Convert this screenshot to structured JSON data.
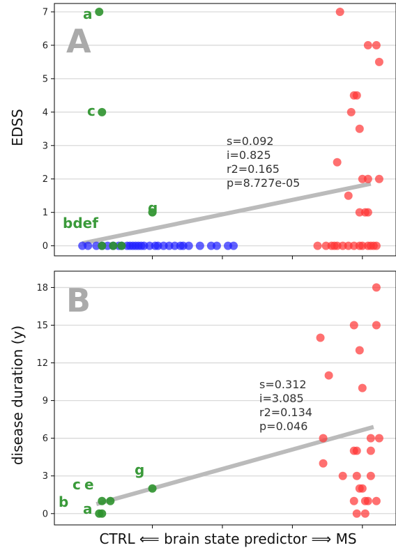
{
  "colors": {
    "ctrl": "#1f1fff",
    "ms": "#ff3333",
    "outlier": "#2e922e",
    "fit": "#bbbbbb",
    "grid": "#d9d9d9",
    "panel_letter": "#aaaaaa"
  },
  "xlabel": "CTRL ⟸ brain state predictor ⟹ MS",
  "chart_data": [
    {
      "type": "scatter",
      "panel": "A",
      "ylabel": "EDSS",
      "xlim": [
        -0.1,
        1.12
      ],
      "ylim": [
        -0.3,
        7.25
      ],
      "yticks": [
        0,
        1,
        2,
        3,
        4,
        5,
        6,
        7
      ],
      "xticks": [
        0.25,
        0.5,
        0.75,
        1.0
      ],
      "grid": "horizontal",
      "fit": {
        "slope": 1.73,
        "intercept": 0.075,
        "x_range": [
          0.0,
          1.03
        ]
      },
      "stats": [
        "s=0.092",
        "i=0.825",
        "r2=0.165",
        "p=8.727e-05"
      ],
      "series": [
        {
          "group": "ctrl",
          "points": [
            [
              0.0,
              0
            ],
            [
              0.02,
              0
            ],
            [
              0.05,
              0
            ],
            [
              0.07,
              0
            ],
            [
              0.09,
              0
            ],
            [
              0.11,
              0
            ],
            [
              0.13,
              0
            ],
            [
              0.14,
              0
            ],
            [
              0.16,
              0
            ],
            [
              0.17,
              0
            ],
            [
              0.18,
              0
            ],
            [
              0.19,
              0
            ],
            [
              0.2,
              0
            ],
            [
              0.21,
              0
            ],
            [
              0.22,
              0
            ],
            [
              0.24,
              0
            ],
            [
              0.26,
              0
            ],
            [
              0.27,
              0
            ],
            [
              0.29,
              0
            ],
            [
              0.31,
              0
            ],
            [
              0.33,
              0
            ],
            [
              0.35,
              0
            ],
            [
              0.36,
              0
            ],
            [
              0.38,
              0
            ],
            [
              0.42,
              0
            ],
            [
              0.46,
              0
            ],
            [
              0.48,
              0
            ],
            [
              0.52,
              0
            ],
            [
              0.54,
              0
            ]
          ]
        },
        {
          "group": "ms",
          "points": [
            [
              0.92,
              7
            ],
            [
              1.02,
              6
            ],
            [
              1.05,
              6
            ],
            [
              1.06,
              5.5
            ],
            [
              0.97,
              4.5
            ],
            [
              0.98,
              4.5
            ],
            [
              0.96,
              4
            ],
            [
              0.99,
              3.5
            ],
            [
              0.91,
              2.5
            ],
            [
              1.0,
              2
            ],
            [
              1.02,
              2
            ],
            [
              1.06,
              2
            ],
            [
              0.95,
              1.5
            ],
            [
              0.99,
              1
            ],
            [
              1.01,
              1
            ],
            [
              1.02,
              1
            ],
            [
              0.84,
              0
            ],
            [
              0.87,
              0
            ],
            [
              0.89,
              0
            ],
            [
              0.9,
              0
            ],
            [
              0.91,
              0
            ],
            [
              0.93,
              0
            ],
            [
              0.95,
              0
            ],
            [
              0.97,
              0
            ],
            [
              0.99,
              0
            ],
            [
              1.0,
              0
            ],
            [
              1.02,
              0
            ],
            [
              1.03,
              0
            ],
            [
              1.04,
              0
            ],
            [
              1.05,
              0
            ]
          ]
        },
        {
          "group": "outlier",
          "points": [
            {
              "x": 0.06,
              "y": 7,
              "label": "a"
            },
            {
              "x": 0.07,
              "y": 4,
              "label": "c"
            },
            {
              "x": 0.25,
              "y": 1,
              "label": "g"
            },
            {
              "x": 0.07,
              "y": 0,
              "label": ""
            },
            {
              "x": 0.11,
              "y": 0,
              "label": ""
            },
            {
              "x": 0.14,
              "y": 0,
              "label": ""
            }
          ]
        }
      ],
      "label_texts": {
        "a": "a",
        "c": "c",
        "g": "g",
        "bdef": "bdef"
      }
    },
    {
      "type": "scatter",
      "panel": "B",
      "ylabel": "disease duration (y)",
      "xlim": [
        -0.1,
        1.12
      ],
      "ylim": [
        -0.9,
        19.3
      ],
      "yticks": [
        0,
        3,
        6,
        9,
        12,
        15,
        18
      ],
      "xticks": [
        0.25,
        0.5,
        0.75,
        1.0
      ],
      "grid": "horizontal",
      "fit": {
        "slope": 6.2,
        "intercept": 0.45,
        "x_range": [
          0.05,
          1.04
        ]
      },
      "stats": [
        "s=0.312",
        "i=3.085",
        "r2=0.134",
        "p=0.046"
      ],
      "series": [
        {
          "group": "ms",
          "points": [
            [
              1.05,
              18
            ],
            [
              0.85,
              14
            ],
            [
              0.97,
              15
            ],
            [
              1.05,
              15
            ],
            [
              0.99,
              13
            ],
            [
              0.88,
              11
            ],
            [
              1.0,
              10
            ],
            [
              0.86,
              6
            ],
            [
              0.97,
              5
            ],
            [
              0.98,
              5
            ],
            [
              1.03,
              5
            ],
            [
              1.03,
              6
            ],
            [
              1.06,
              6
            ],
            [
              0.86,
              4
            ],
            [
              0.93,
              3
            ],
            [
              0.98,
              3
            ],
            [
              1.03,
              3
            ],
            [
              0.99,
              2
            ],
            [
              1.0,
              2
            ],
            [
              0.97,
              1
            ],
            [
              1.01,
              1
            ],
            [
              1.02,
              1
            ],
            [
              1.05,
              1
            ],
            [
              0.98,
              0
            ],
            [
              1.01,
              0
            ]
          ]
        },
        {
          "group": "outlier",
          "points": [
            {
              "x": 0.06,
              "y": 0,
              "label": "b"
            },
            {
              "x": 0.07,
              "y": 0,
              "label": "a"
            },
            {
              "x": 0.07,
              "y": 1,
              "label": "c"
            },
            {
              "x": 0.1,
              "y": 1,
              "label": "e"
            },
            {
              "x": 0.25,
              "y": 2,
              "label": "g"
            }
          ]
        }
      ],
      "label_texts": {
        "a": "a",
        "b": "b",
        "c": "c",
        "e": "e",
        "g": "g"
      }
    }
  ]
}
